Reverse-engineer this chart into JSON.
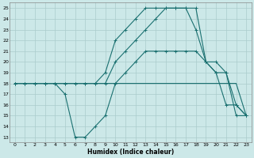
{
  "xlabel": "Humidex (Indice chaleur)",
  "bg_color": "#cce8e8",
  "grid_color": "#aacccc",
  "line_color": "#1a7070",
  "xlim": [
    -0.5,
    23.5
  ],
  "ylim": [
    12.5,
    25.5
  ],
  "xticks": [
    0,
    1,
    2,
    3,
    4,
    5,
    6,
    7,
    8,
    9,
    10,
    11,
    12,
    13,
    14,
    15,
    16,
    17,
    18,
    19,
    20,
    21,
    22,
    23
  ],
  "yticks": [
    13,
    14,
    15,
    16,
    17,
    18,
    19,
    20,
    21,
    22,
    23,
    24,
    25
  ],
  "line1_x": [
    0,
    1,
    2,
    3,
    4,
    5,
    6,
    7,
    8,
    9,
    10,
    11,
    12,
    13,
    14,
    15,
    16,
    17,
    18,
    19,
    20,
    21,
    22,
    23
  ],
  "line1_y": [
    18,
    18,
    18,
    18,
    18,
    17,
    13,
    13,
    14,
    15,
    18,
    19,
    20,
    21,
    21,
    21,
    21,
    21,
    21,
    20,
    19,
    16,
    16,
    15
  ],
  "line2_x": [
    0,
    1,
    2,
    3,
    4,
    5,
    6,
    7,
    8,
    9,
    10,
    11,
    12,
    13,
    14,
    15,
    16,
    17,
    18,
    19,
    20,
    21,
    22,
    23
  ],
  "line2_y": [
    18,
    18,
    18,
    18,
    18,
    18,
    18,
    18,
    18,
    18,
    18,
    18,
    18,
    18,
    18,
    18,
    18,
    18,
    18,
    18,
    18,
    18,
    18,
    15
  ],
  "line3_x": [
    0,
    1,
    2,
    3,
    4,
    5,
    6,
    7,
    8,
    9,
    10,
    11,
    12,
    13,
    14,
    15,
    16,
    17,
    18,
    19,
    20,
    21,
    22,
    23
  ],
  "line3_y": [
    18,
    18,
    18,
    18,
    18,
    18,
    18,
    18,
    18,
    19,
    22,
    23,
    24,
    25,
    25,
    25,
    25,
    25,
    23,
    20,
    20,
    19,
    16,
    15
  ],
  "line4_x": [
    0,
    1,
    2,
    3,
    4,
    5,
    6,
    7,
    8,
    9,
    10,
    11,
    12,
    13,
    14,
    15,
    16,
    17,
    18,
    19,
    20,
    21,
    22,
    23
  ],
  "line4_y": [
    18,
    18,
    18,
    18,
    18,
    18,
    18,
    18,
    18,
    18,
    20,
    21,
    22,
    23,
    24,
    25,
    25,
    25,
    25,
    20,
    19,
    19,
    15,
    15
  ]
}
